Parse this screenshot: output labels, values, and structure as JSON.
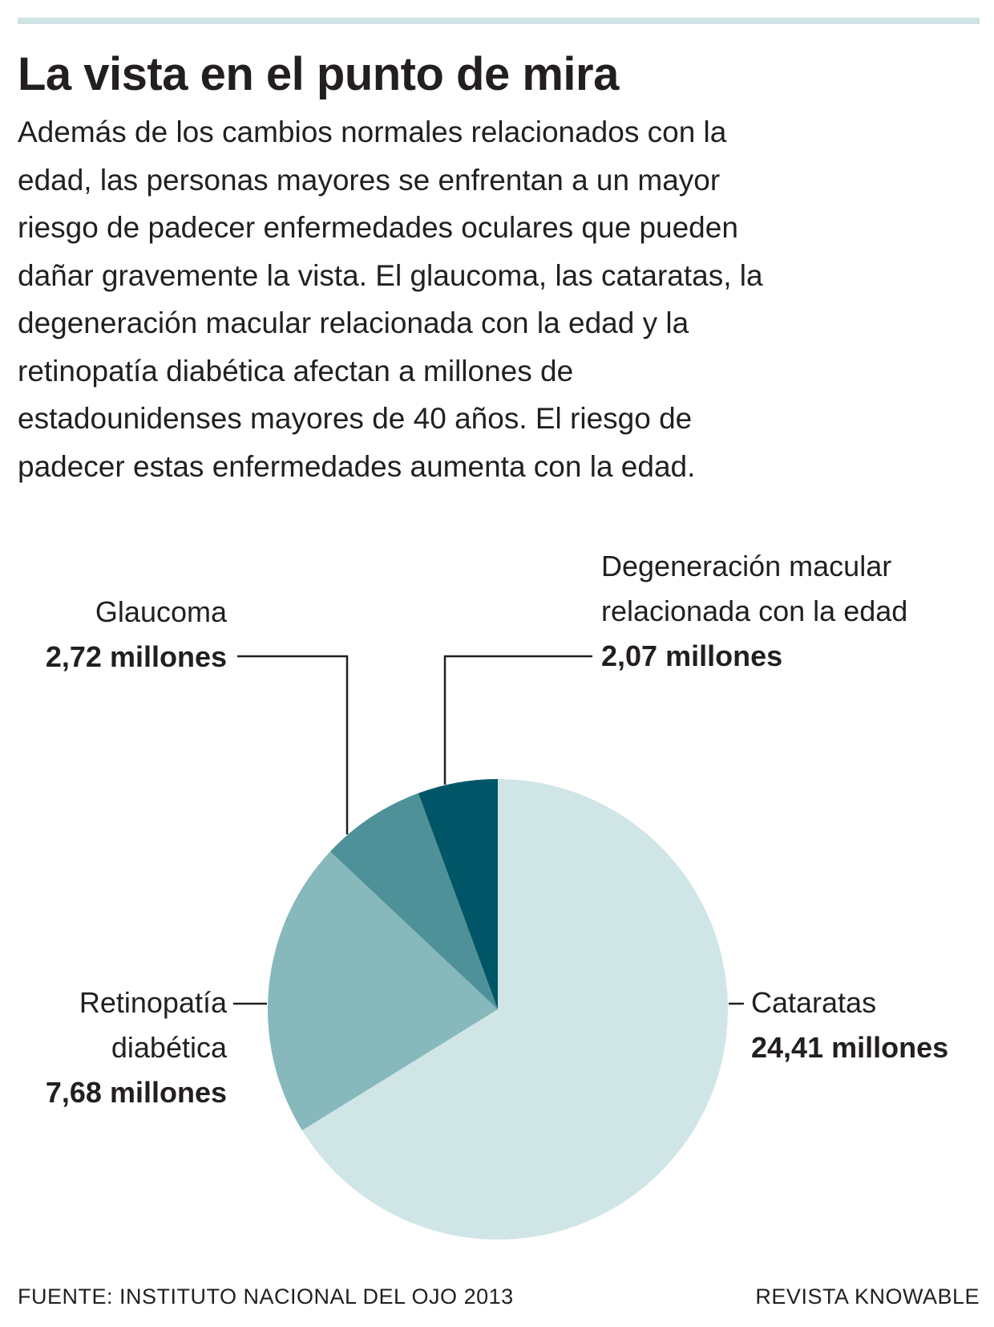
{
  "header": {
    "title": "La vista en el punto de mira",
    "intro_lines": [
      "Además de los cambios normales relacionados con la",
      "edad, las personas mayores se enfrentan a un mayor",
      "riesgo de padecer enfermedades oculares que pueden",
      "dañar gravemente la vista. El glaucoma, las cataratas, la",
      "degeneración macular relacionada con la edad y la",
      "retinopatía diabética afectan a millones de",
      "estadounidenses mayores de 40 años. El riesgo de",
      "padecer estas enfermedades aumenta con la edad."
    ]
  },
  "chart_data": {
    "type": "pie",
    "title": "",
    "start": "12 o'clock",
    "direction": "clockwise",
    "slices": [
      {
        "label": "Cataratas",
        "value_text": "24,41 millones",
        "value": 24.41,
        "color": "#d0e5e6"
      },
      {
        "label": "Retinopatía diabética",
        "label_lines": [
          "Retinopatía",
          "diabética"
        ],
        "value_text": "7,68 millones",
        "value": 7.68,
        "color": "#86b8bc"
      },
      {
        "label": "Glaucoma",
        "value_text": "2,72 millones",
        "value": 2.72,
        "color": "#4f9198"
      },
      {
        "label": "Degeneración macular relacionada con la edad",
        "label_lines": [
          "Degeneración macular",
          "relacionada con la edad"
        ],
        "value_text": "2,07 millones",
        "value": 2.07,
        "color": "#005666"
      }
    ]
  },
  "footer": {
    "source": "FUENTE: INSTITUTO NACIONAL DEL OJO 2013",
    "brand": "REVISTA KNOWABLE"
  },
  "colors": {
    "top_rule": "#cfe4e4",
    "text": "#231f20",
    "leader_lines": "#231f20"
  }
}
